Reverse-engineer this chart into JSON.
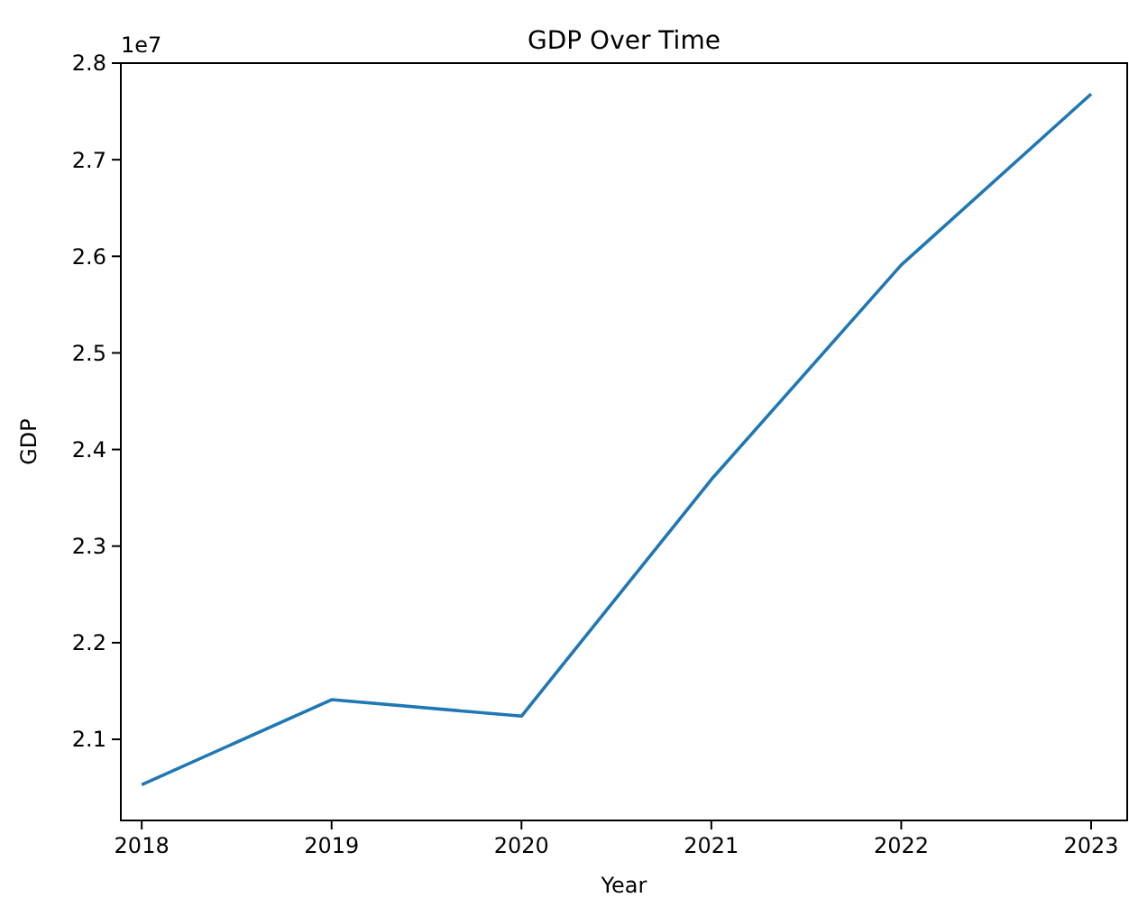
{
  "chart_data": {
    "type": "line",
    "title": "GDP Over Time",
    "xlabel": "Year",
    "ylabel": "GDP",
    "annotations": [
      "1e7"
    ],
    "x": [
      2018,
      2019,
      2020,
      2021,
      2022,
      2023
    ],
    "series": [
      {
        "color": "#1f77b4",
        "values": [
          2.053,
          2.141,
          2.124,
          2.369,
          2.591,
          2.768
        ]
      }
    ],
    "xlim": [
      2017.89,
      2023.19
    ],
    "xticks": [
      2018,
      2019,
      2020,
      2021,
      2022,
      2023
    ],
    "ylim": [
      2.016,
      2.8
    ],
    "yticks": [
      2.1,
      2.2,
      2.3,
      2.4,
      2.5,
      2.6,
      2.7,
      2.8
    ],
    "grid": false,
    "marker": "none",
    "line_style": "solid"
  }
}
